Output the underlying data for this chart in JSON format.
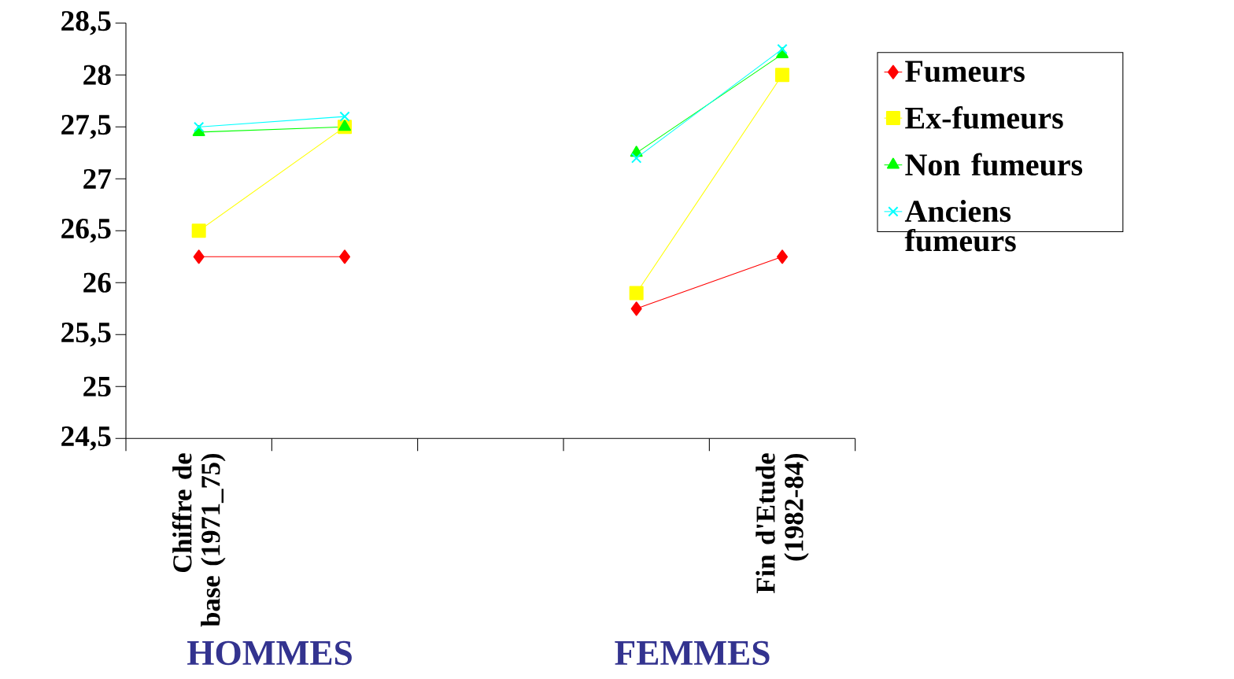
{
  "chart_data": {
    "type": "line",
    "categories": [
      "Chiffre de base (1971_75)",
      null,
      null,
      null,
      "Fin d'Etude (1982-84)"
    ],
    "series": [
      {
        "name": "Fumeurs",
        "color": "#ff0000",
        "marker": "diamond",
        "values": [
          26.25,
          26.25,
          null,
          25.75,
          26.25
        ]
      },
      {
        "name": "Ex-fumeurs",
        "color": "#ffff00",
        "marker": "square",
        "values": [
          26.5,
          27.5,
          null,
          25.9,
          28.0
        ]
      },
      {
        "name": "Non fumeurs",
        "color": "#00ff00",
        "marker": "triangle",
        "values": [
          27.45,
          27.5,
          null,
          27.25,
          28.2
        ]
      },
      {
        "name": "Anciens fumeurs",
        "color": "#00ffff",
        "marker": "cross",
        "values": [
          27.5,
          27.6,
          null,
          27.2,
          28.25
        ]
      }
    ],
    "ylim": [
      24.5,
      28.5
    ],
    "yticks": [
      {
        "value": 24.5,
        "label": "24,5"
      },
      25,
      {
        "value": 25.5,
        "label": "25,5"
      },
      26,
      {
        "value": 26.5,
        "label": "26,5"
      },
      27,
      {
        "value": 27.5,
        "label": "27,5"
      },
      28,
      {
        "value": 28.5,
        "label": "28,5"
      }
    ],
    "legend": "right",
    "grid": false,
    "annotations": [
      "HOMMES",
      "FEMMES"
    ]
  }
}
